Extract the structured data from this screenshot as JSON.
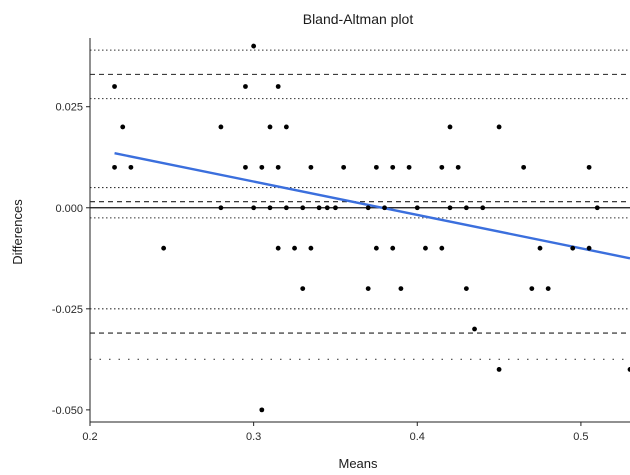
{
  "chart_data": {
    "type": "scatter",
    "title": "Bland-Altman plot",
    "xlabel": "Means",
    "ylabel": "Differences",
    "xlim": [
      0.2,
      0.53
    ],
    "ylim": [
      -0.053,
      0.042
    ],
    "x_ticks": [
      {
        "value": 0.2,
        "label": "0.2"
      },
      {
        "value": 0.3,
        "label": "0.3"
      },
      {
        "value": 0.4,
        "label": "0.4"
      },
      {
        "value": 0.5,
        "label": "0.5"
      }
    ],
    "y_ticks": [
      {
        "value": 0.025,
        "label": "0.025"
      },
      {
        "value": 0.0,
        "label": "0.000"
      },
      {
        "value": -0.025,
        "label": "-0.025"
      },
      {
        "value": -0.05,
        "label": "-0.050"
      }
    ],
    "grid": false,
    "points": [
      {
        "x": 0.215,
        "y": 0.03
      },
      {
        "x": 0.215,
        "y": 0.01
      },
      {
        "x": 0.22,
        "y": 0.02
      },
      {
        "x": 0.225,
        "y": 0.01
      },
      {
        "x": 0.245,
        "y": -0.01
      },
      {
        "x": 0.28,
        "y": 0.02
      },
      {
        "x": 0.28,
        "y": 0.0
      },
      {
        "x": 0.295,
        "y": 0.03
      },
      {
        "x": 0.295,
        "y": 0.01
      },
      {
        "x": 0.3,
        "y": 0.04
      },
      {
        "x": 0.3,
        "y": 0.0
      },
      {
        "x": 0.305,
        "y": 0.01
      },
      {
        "x": 0.305,
        "y": -0.05
      },
      {
        "x": 0.31,
        "y": 0.02
      },
      {
        "x": 0.31,
        "y": 0.0
      },
      {
        "x": 0.315,
        "y": 0.03
      },
      {
        "x": 0.315,
        "y": 0.01
      },
      {
        "x": 0.315,
        "y": -0.01
      },
      {
        "x": 0.32,
        "y": 0.02
      },
      {
        "x": 0.32,
        "y": 0.0
      },
      {
        "x": 0.325,
        "y": -0.01
      },
      {
        "x": 0.33,
        "y": 0.0
      },
      {
        "x": 0.33,
        "y": -0.02
      },
      {
        "x": 0.335,
        "y": 0.01
      },
      {
        "x": 0.335,
        "y": -0.01
      },
      {
        "x": 0.34,
        "y": 0.0
      },
      {
        "x": 0.345,
        "y": 0.0
      },
      {
        "x": 0.35,
        "y": 0.0
      },
      {
        "x": 0.355,
        "y": 0.01
      },
      {
        "x": 0.37,
        "y": 0.0
      },
      {
        "x": 0.37,
        "y": -0.02
      },
      {
        "x": 0.375,
        "y": 0.01
      },
      {
        "x": 0.375,
        "y": -0.01
      },
      {
        "x": 0.38,
        "y": 0.0
      },
      {
        "x": 0.385,
        "y": 0.01
      },
      {
        "x": 0.385,
        "y": -0.01
      },
      {
        "x": 0.39,
        "y": -0.02
      },
      {
        "x": 0.395,
        "y": 0.01
      },
      {
        "x": 0.4,
        "y": 0.0
      },
      {
        "x": 0.405,
        "y": -0.01
      },
      {
        "x": 0.415,
        "y": 0.01
      },
      {
        "x": 0.415,
        "y": -0.01
      },
      {
        "x": 0.42,
        "y": 0.02
      },
      {
        "x": 0.42,
        "y": 0.0
      },
      {
        "x": 0.425,
        "y": 0.01
      },
      {
        "x": 0.43,
        "y": 0.0
      },
      {
        "x": 0.43,
        "y": -0.02
      },
      {
        "x": 0.435,
        "y": -0.03
      },
      {
        "x": 0.44,
        "y": 0.0
      },
      {
        "x": 0.45,
        "y": 0.02
      },
      {
        "x": 0.45,
        "y": -0.04
      },
      {
        "x": 0.465,
        "y": 0.01
      },
      {
        "x": 0.47,
        "y": -0.02
      },
      {
        "x": 0.475,
        "y": -0.01
      },
      {
        "x": 0.48,
        "y": -0.02
      },
      {
        "x": 0.495,
        "y": -0.01
      },
      {
        "x": 0.505,
        "y": 0.01
      },
      {
        "x": 0.505,
        "y": -0.01
      },
      {
        "x": 0.51,
        "y": 0.0
      },
      {
        "x": 0.53,
        "y": -0.04
      }
    ],
    "regression_line": {
      "color": "#3b6fdd",
      "x": [
        0.215,
        0.53
      ],
      "y": [
        0.0135,
        -0.0125
      ]
    },
    "reference_lines": [
      {
        "y": 0.0,
        "style": "solid",
        "color": "#111111"
      },
      {
        "y": 0.0015,
        "style": "dashed",
        "color": "#222222"
      },
      {
        "y": 0.005,
        "style": "dotted",
        "color": "#333333"
      },
      {
        "y": -0.0025,
        "style": "dotted",
        "color": "#333333"
      },
      {
        "y": 0.033,
        "style": "dashed",
        "color": "#222222"
      },
      {
        "y": 0.039,
        "style": "dotted",
        "color": "#333333"
      },
      {
        "y": 0.027,
        "style": "dotted",
        "color": "#333333"
      },
      {
        "y": -0.031,
        "style": "dashed",
        "color": "#222222"
      },
      {
        "y": -0.025,
        "style": "dotted",
        "color": "#333333"
      },
      {
        "y": -0.0375,
        "style": "sparse-dotted",
        "color": "#444444"
      }
    ],
    "colors": {
      "points": "#000000",
      "axis": "#222222"
    }
  }
}
